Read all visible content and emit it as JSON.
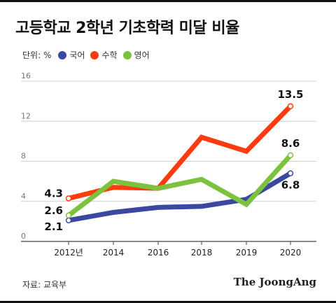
{
  "title": "고등학교 2학년 기초학력 미달 비율",
  "legend_unit": "단위: %",
  "source": "자료: 교육부",
  "brand": "The JoongAng",
  "chart_data": {
    "type": "line",
    "categories": [
      "2012년",
      "2014",
      "2016",
      "2018",
      "2019",
      "2020"
    ],
    "ylim": [
      0,
      16
    ],
    "yticks": [
      0,
      4,
      8,
      12,
      16
    ],
    "grid": true,
    "legend_placement": "top-left",
    "series": [
      {
        "name": "국어",
        "color": "#3a48a0",
        "values": [
          2.1,
          2.9,
          3.4,
          3.5,
          4.2,
          6.8
        ]
      },
      {
        "name": "수학",
        "color": "#ff3b0f",
        "values": [
          4.3,
          5.4,
          5.3,
          10.4,
          9.0,
          13.5
        ]
      },
      {
        "name": "영어",
        "color": "#7cc23f",
        "values": [
          2.6,
          6.0,
          5.3,
          6.2,
          3.7,
          8.6
        ]
      }
    ],
    "data_labels": [
      {
        "series": 0,
        "index": 0,
        "text": "2.1"
      },
      {
        "series": 0,
        "index": 5,
        "text": "6.8"
      },
      {
        "series": 1,
        "index": 0,
        "text": "4.3"
      },
      {
        "series": 1,
        "index": 5,
        "text": "13.5"
      },
      {
        "series": 2,
        "index": 0,
        "text": "2.6"
      },
      {
        "series": 2,
        "index": 5,
        "text": "8.6"
      }
    ]
  }
}
